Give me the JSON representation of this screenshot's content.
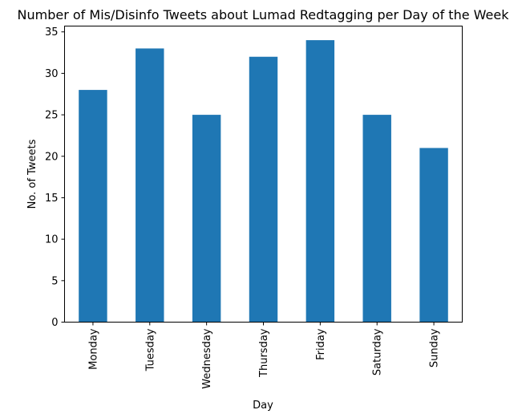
{
  "chart_data": {
    "type": "bar",
    "title": "Number of Mis/Disinfo Tweets about Lumad Redtagging per Day of the Week",
    "xlabel": "Day",
    "ylabel": "No. of Tweets",
    "categories": [
      "Monday",
      "Tuesday",
      "Wednesday",
      "Thursday",
      "Friday",
      "Saturday",
      "Sunday"
    ],
    "values": [
      28,
      33,
      25,
      32,
      34,
      25,
      21
    ],
    "ylim": [
      0,
      35.7
    ],
    "yticks": [
      0,
      5,
      10,
      15,
      20,
      25,
      30,
      35
    ],
    "bar_color": "#1f77b4",
    "grid": false,
    "legend": "none"
  }
}
